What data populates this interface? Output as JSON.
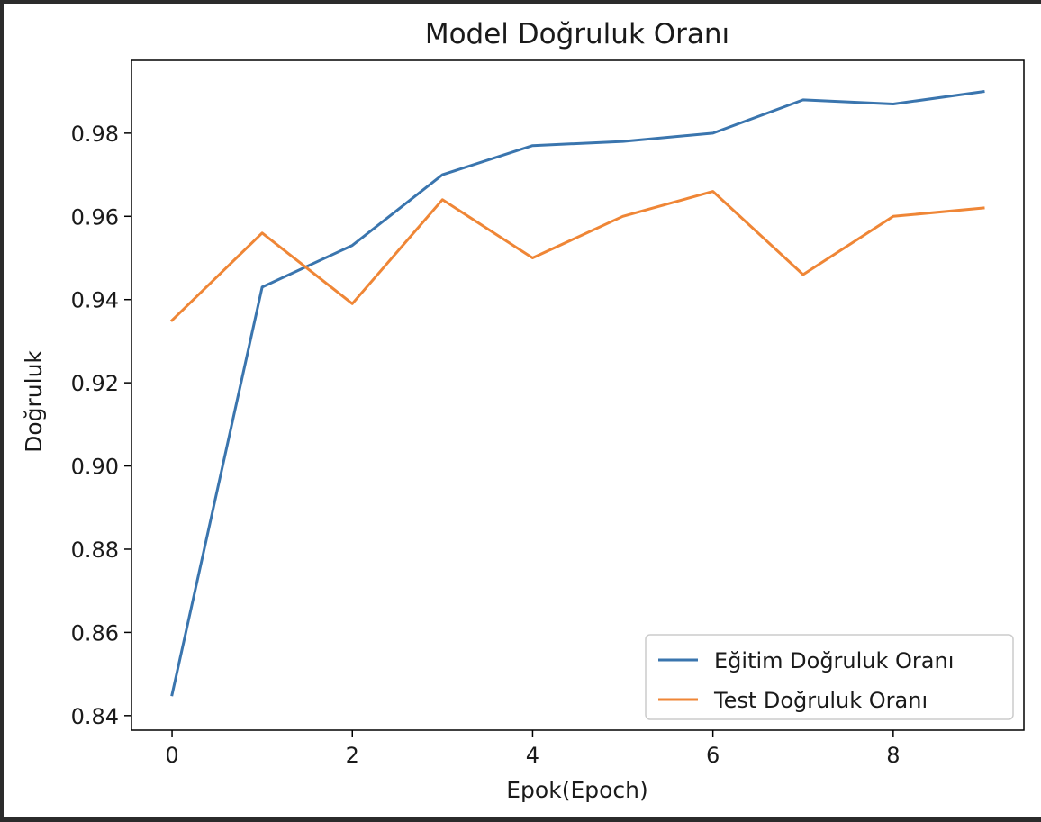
{
  "chart_data": {
    "type": "line",
    "title": "Model Doğruluk Oranı",
    "xlabel": "Epok(Epoch)",
    "ylabel": "Doğruluk",
    "xlim": [
      -0.45,
      9.45
    ],
    "ylim": [
      0.8365,
      0.9975
    ],
    "x_ticks": [
      0,
      2,
      4,
      6,
      8
    ],
    "y_ticks": [
      0.84,
      0.86,
      0.88,
      0.9,
      0.92,
      0.94,
      0.96,
      0.98
    ],
    "x": [
      0,
      1,
      2,
      3,
      4,
      5,
      6,
      7,
      8,
      9
    ],
    "series": [
      {
        "name": "Eğitim Doğruluk Oranı",
        "color": "#3a75ae",
        "values": [
          0.845,
          0.943,
          0.953,
          0.97,
          0.977,
          0.978,
          0.98,
          0.988,
          0.987,
          0.99
        ]
      },
      {
        "name": "Test Doğruluk Oranı",
        "color": "#ef8636",
        "values": [
          0.935,
          0.956,
          0.939,
          0.964,
          0.95,
          0.96,
          0.966,
          0.946,
          0.96,
          0.962
        ]
      }
    ],
    "grid": false,
    "legend_position": "lower-right"
  }
}
